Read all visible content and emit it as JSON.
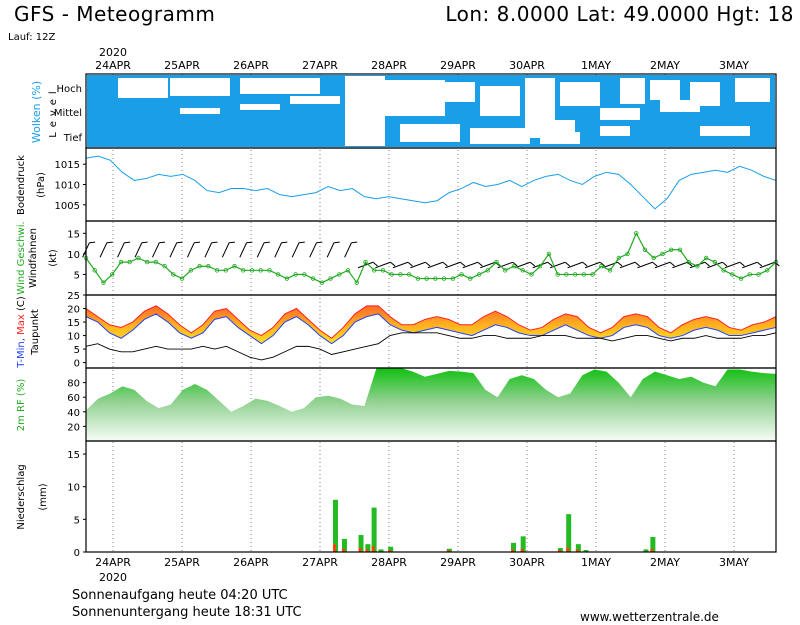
{
  "header": {
    "title": "GFS - Meteogramm",
    "location": "Lon: 8.0000  Lat: 49.0000  Hgt: 18",
    "run": "Lauf: 12Z"
  },
  "footer": {
    "sunrise": "Sonnenaufgang heute 04:20 UTC",
    "sunset": "Sonnenuntergang heute 18:31 UTC",
    "site": "www.wetterzentrale.de"
  },
  "colors": {
    "cloud": "#1a9ee8",
    "pressure": "#1a9ee8",
    "wind": "#22aa22",
    "tmax": "#ff2020",
    "tmin": "#2040ff",
    "rh": "#22bb22",
    "precip_rain": "#22bb22",
    "precip_conv": "#ff4400"
  },
  "chart_data": {
    "type": "meteogram",
    "year": "2020",
    "date_labels": [
      "24APR",
      "25APR",
      "26APR",
      "27APR",
      "28APR",
      "29APR",
      "30APR",
      "1MAY",
      "2MAY",
      "3MAY"
    ],
    "panels": {
      "clouds": {
        "label": "Wolken (%)",
        "level_label": "Level",
        "levels": [
          "Hoch",
          "Mittel",
          "Tief"
        ]
      },
      "pressure": {
        "label": "Bodendruck",
        "unit": "(hPa)",
        "ticks": [
          1005,
          1010,
          1015
        ],
        "ylim": [
          1001,
          1019
        ],
        "values": [
          1016.5,
          1017,
          1016,
          1013,
          1011,
          1011.5,
          1012.5,
          1012,
          1012.5,
          1011,
          1008.5,
          1008,
          1009,
          1009,
          1008.5,
          1009,
          1007.5,
          1007,
          1007.5,
          1008,
          1009.5,
          1008.5,
          1009,
          1007,
          1006.5,
          1007,
          1006.5,
          1006,
          1005.5,
          1006,
          1008,
          1009,
          1010.5,
          1009.5,
          1010,
          1011,
          1009.5,
          1011,
          1012,
          1012.5,
          1011,
          1010,
          1012,
          1013,
          1012.5,
          1010,
          1007,
          1004,
          1006.5,
          1011,
          1012.5,
          1013,
          1013.5,
          1013,
          1014.5,
          1013.5,
          1012,
          1011
        ]
      },
      "wind": {
        "label_speed": "Wind Geschwi.",
        "label_barbs": "Windfahnen",
        "unit": "(kt)",
        "ticks": [
          5,
          10,
          15
        ],
        "ylim": [
          0,
          18
        ],
        "values": [
          9,
          6,
          3,
          5,
          8,
          8,
          9,
          8,
          8,
          7,
          5,
          4,
          6,
          7,
          7,
          6,
          6,
          7,
          6,
          6,
          6,
          6,
          5,
          4,
          5,
          5,
          4,
          3,
          4,
          5,
          6,
          3,
          8,
          6,
          6,
          5,
          5,
          5,
          4,
          4,
          4,
          4,
          4,
          5,
          4,
          5,
          6,
          8,
          6,
          7,
          6,
          5,
          7,
          10,
          5,
          5,
          5,
          5,
          5,
          7,
          6,
          9,
          10,
          15,
          11,
          9,
          10,
          11,
          11,
          8,
          7,
          9,
          8,
          6,
          5,
          4,
          5,
          5,
          6,
          8
        ]
      },
      "temperature": {
        "label_tmin": "T-Min,",
        "label_tmax": "Max",
        "label_unit": "(C)",
        "label_dew": "Taupunkt",
        "ticks": [
          0,
          5,
          10,
          15,
          20,
          25
        ],
        "ylim": [
          -2,
          25
        ],
        "tmax": [
          20,
          17,
          14,
          13,
          15,
          19,
          21,
          18,
          14,
          11,
          14,
          19,
          20,
          16,
          12,
          10,
          13,
          18,
          20,
          16,
          12,
          9,
          13,
          18,
          21,
          21,
          17,
          14,
          14,
          16,
          17,
          16,
          14,
          14,
          17,
          19,
          17,
          14,
          12,
          13,
          16,
          18,
          17,
          13,
          11,
          13,
          17,
          18,
          17,
          13,
          11,
          14,
          16,
          17,
          16,
          13,
          12,
          14,
          15,
          17
        ],
        "tmin": [
          17,
          15,
          11,
          9,
          12,
          16,
          18,
          15,
          11,
          9,
          11,
          16,
          17,
          13,
          10,
          7,
          10,
          15,
          17,
          14,
          10,
          7,
          10,
          15,
          17,
          18,
          14,
          12,
          11,
          12,
          13,
          12,
          11,
          10,
          12,
          14,
          13,
          11,
          10,
          10,
          12,
          14,
          12,
          10,
          9,
          10,
          13,
          14,
          13,
          10,
          9,
          10,
          12,
          13,
          12,
          10,
          10,
          11,
          12,
          13
        ],
        "dewpoint": [
          6,
          7,
          5,
          4,
          4,
          5,
          6,
          5,
          5,
          5,
          6,
          5,
          6,
          4,
          2,
          1,
          2,
          4,
          6,
          6,
          5,
          3,
          4,
          5,
          6,
          7,
          10,
          11,
          11,
          11,
          11,
          10,
          9,
          9,
          10,
          10,
          9,
          9,
          9,
          10,
          10,
          10,
          9,
          9,
          9,
          8,
          9,
          10,
          10,
          9,
          8,
          9,
          9,
          10,
          9,
          9,
          9,
          10,
          10,
          11
        ]
      },
      "humidity": {
        "label": "2m RF (%)",
        "ticks": [
          20,
          40,
          60,
          80
        ],
        "ylim": [
          0,
          100
        ],
        "values": [
          42,
          58,
          65,
          75,
          70,
          55,
          45,
          50,
          70,
          78,
          70,
          55,
          40,
          48,
          58,
          55,
          48,
          40,
          45,
          60,
          62,
          58,
          50,
          48,
          100,
          100,
          100,
          95,
          88,
          92,
          96,
          95,
          93,
          70,
          60,
          85,
          90,
          85,
          70,
          60,
          65,
          90,
          98,
          95,
          80,
          60,
          85,
          95,
          90,
          85,
          88,
          80,
          75,
          98,
          98,
          95,
          93,
          92
        ]
      },
      "precip": {
        "label": "Niederschlag",
        "unit": "(mm)",
        "ticks": [
          0,
          5,
          10,
          15
        ],
        "ylim": [
          0,
          17
        ],
        "bars": [
          {
            "x": 2.42,
            "rain": 8.0,
            "conv": 1.2
          },
          {
            "x": 2.55,
            "rain": 2.0,
            "conv": 0.5
          },
          {
            "x": 2.79,
            "rain": 2.6,
            "conv": 0.6
          },
          {
            "x": 2.89,
            "rain": 1.2,
            "conv": 0.4
          },
          {
            "x": 2.98,
            "rain": 6.8,
            "conv": 0.9
          },
          {
            "x": 3.08,
            "rain": 0.4,
            "conv": 0.1
          },
          {
            "x": 3.22,
            "rain": 0.8,
            "conv": 0.3
          },
          {
            "x": 4.07,
            "rain": 0.5,
            "conv": 0.3
          },
          {
            "x": 5.0,
            "rain": 1.4,
            "conv": 0.4
          },
          {
            "x": 5.14,
            "rain": 2.4,
            "conv": 0.5
          },
          {
            "x": 5.68,
            "rain": 0.6,
            "conv": 0.3
          },
          {
            "x": 5.8,
            "rain": 5.8,
            "conv": 0.7
          },
          {
            "x": 5.94,
            "rain": 1.2,
            "conv": 0.4
          },
          {
            "x": 6.05,
            "rain": 0.3,
            "conv": 0.1
          },
          {
            "x": 6.92,
            "rain": 0.4,
            "conv": 0.1
          },
          {
            "x": 7.02,
            "rain": 2.3,
            "conv": 0.5
          }
        ]
      }
    }
  }
}
